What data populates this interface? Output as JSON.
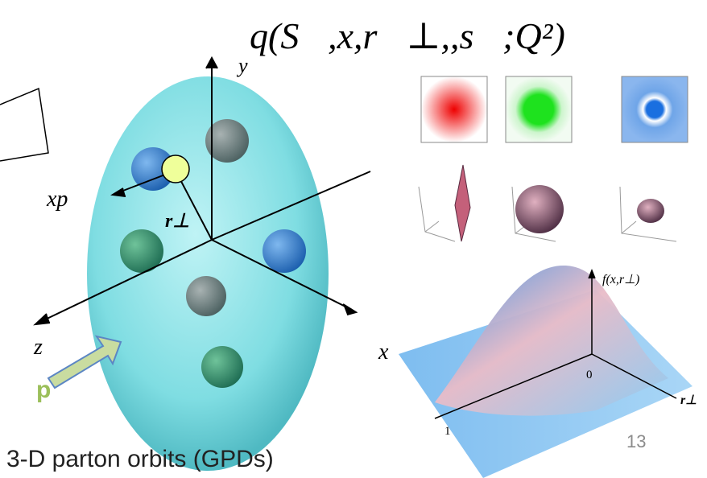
{
  "formula": "q(S⃗,x,r⃗⊥,,s⃗;Q²)",
  "orbit_figure": {
    "axis_y": "y",
    "axis_xp": "xp",
    "axis_r_perp": "r⊥",
    "axis_z": "z",
    "axis_x": "x",
    "proton_symbol": "p"
  },
  "distribution_plot": {
    "axis_f": "f(x,r⊥)",
    "origin": "0",
    "axis_r": "r⊥",
    "x_end": "1"
  },
  "page_number": "13",
  "caption": "3-D parton orbits (GPDs)"
}
